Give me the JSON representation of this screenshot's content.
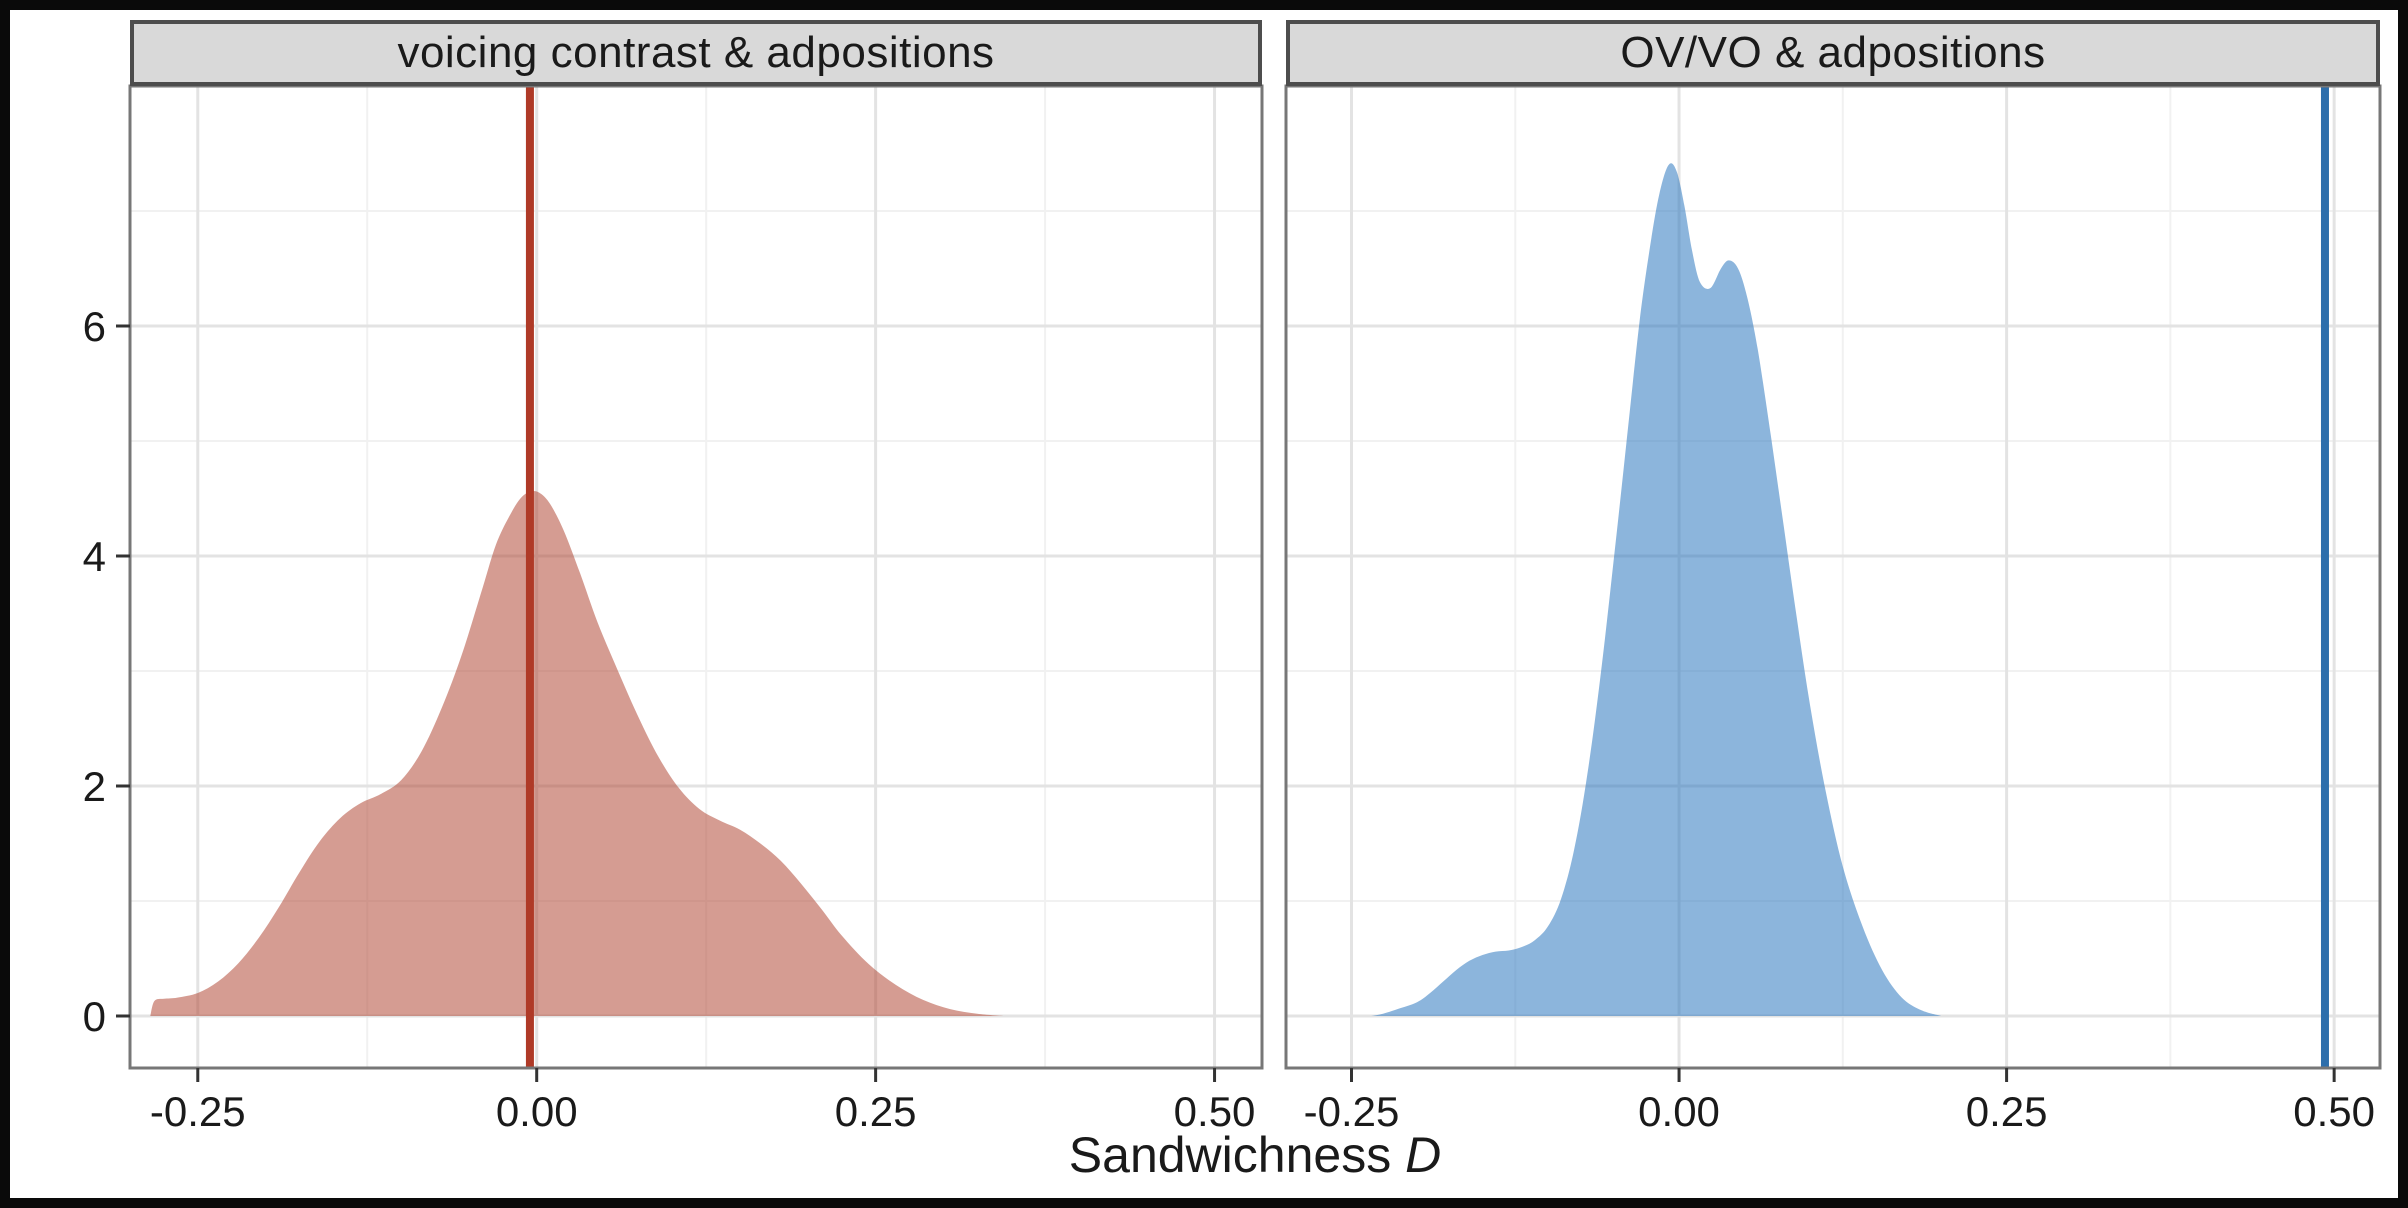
{
  "figure": {
    "xlabel": "Sandwichness ",
    "xlabel_italic": "D",
    "background": "#ffffff",
    "frame_color": "#0a0a0a"
  },
  "style": {
    "strip_fill": "#d9d9d9",
    "strip_border": "#4d4d4d",
    "panel_border": "#777777",
    "grid_major": "#e3e3e3",
    "grid_minor": "#f1f1f1",
    "tick_mark_color": "#333333",
    "text_color": "#1a1a1a"
  },
  "axis": {
    "x": {
      "tick_values": [
        -0.25,
        0,
        0.25,
        0.5
      ],
      "tick_labels": [
        "-0.25",
        "0.00",
        "0.25",
        "0.50"
      ],
      "minor_values": [
        -0.125,
        0.125,
        0.375
      ],
      "domain": [
        -0.3,
        0.535
      ]
    },
    "y": {
      "tick_values": [
        0,
        2,
        4,
        6
      ],
      "tick_labels": [
        "0",
        "2",
        "4",
        "6"
      ],
      "minor_values": [
        1,
        3,
        5,
        7
      ],
      "domain": [
        -0.49,
        8.09
      ]
    }
  },
  "chart_data": [
    {
      "type": "area",
      "facet": "voicing contrast & adpositions",
      "xlabel": "Sandwichness D",
      "ylabel": "",
      "xlim": [
        -0.3,
        0.535
      ],
      "ylim": [
        -0.49,
        8.09
      ],
      "x_ticks": [
        -0.25,
        0,
        0.25,
        0.5
      ],
      "y_ticks": [
        0,
        2,
        4,
        6
      ],
      "grid": true,
      "legend": false,
      "fill": "#B34B39",
      "fill_opacity": 0.55,
      "vline": {
        "x": -0.005,
        "color": "#AF3A27",
        "width": 8
      },
      "density": {
        "x": [
          -0.285,
          -0.282,
          -0.275,
          -0.265,
          -0.25,
          -0.235,
          -0.22,
          -0.205,
          -0.19,
          -0.175,
          -0.16,
          -0.145,
          -0.13,
          -0.115,
          -0.1,
          -0.085,
          -0.07,
          -0.055,
          -0.04,
          -0.03,
          -0.02,
          -0.012,
          -0.005,
          0.002,
          0.01,
          0.02,
          0.032,
          0.045,
          0.06,
          0.075,
          0.09,
          0.105,
          0.12,
          0.135,
          0.15,
          0.165,
          0.18,
          0.195,
          0.21,
          0.225,
          0.245,
          0.265,
          0.285,
          0.305,
          0.325,
          0.345
        ],
        "y": [
          0,
          0.13,
          0.15,
          0.16,
          0.2,
          0.3,
          0.46,
          0.68,
          0.95,
          1.25,
          1.52,
          1.72,
          1.85,
          1.93,
          2.05,
          2.3,
          2.68,
          3.15,
          3.72,
          4.1,
          4.35,
          4.5,
          4.56,
          4.55,
          4.45,
          4.22,
          3.85,
          3.42,
          3.0,
          2.6,
          2.25,
          1.98,
          1.8,
          1.7,
          1.62,
          1.5,
          1.35,
          1.15,
          0.93,
          0.7,
          0.45,
          0.27,
          0.14,
          0.06,
          0.02,
          0
        ]
      }
    },
    {
      "type": "area",
      "facet": "OV/VO & adpositions",
      "xlabel": "Sandwichness D",
      "ylabel": "",
      "xlim": [
        -0.3,
        0.535
      ],
      "ylim": [
        -0.49,
        8.09
      ],
      "x_ticks": [
        -0.25,
        0,
        0.25,
        0.5
      ],
      "y_ticks": [
        0,
        2,
        4,
        6
      ],
      "grid": true,
      "legend": false,
      "fill": "#2E78BF",
      "fill_opacity": 0.55,
      "vline": {
        "x": 0.493,
        "color": "#2D6EAB",
        "width": 8
      },
      "density": {
        "x": [
          -0.235,
          -0.226,
          -0.215,
          -0.2,
          -0.19,
          -0.18,
          -0.17,
          -0.16,
          -0.15,
          -0.14,
          -0.13,
          -0.12,
          -0.11,
          -0.1,
          -0.09,
          -0.08,
          -0.07,
          -0.06,
          -0.05,
          -0.04,
          -0.03,
          -0.022,
          -0.015,
          -0.008,
          -0.002,
          0.004,
          0.01,
          0.016,
          0.024,
          0.032,
          0.038,
          0.045,
          0.052,
          0.06,
          0.07,
          0.08,
          0.09,
          0.1,
          0.112,
          0.125,
          0.14,
          0.155,
          0.17,
          0.185,
          0.2
        ],
        "y": [
          0,
          0.02,
          0.06,
          0.12,
          0.2,
          0.3,
          0.4,
          0.48,
          0.53,
          0.56,
          0.57,
          0.6,
          0.66,
          0.78,
          1.02,
          1.45,
          2.1,
          2.95,
          3.95,
          5.0,
          6.05,
          6.7,
          7.15,
          7.4,
          7.35,
          7.05,
          6.65,
          6.38,
          6.33,
          6.5,
          6.57,
          6.5,
          6.25,
          5.8,
          5.05,
          4.25,
          3.45,
          2.7,
          1.95,
          1.3,
          0.78,
          0.4,
          0.16,
          0.05,
          0
        ]
      }
    }
  ]
}
